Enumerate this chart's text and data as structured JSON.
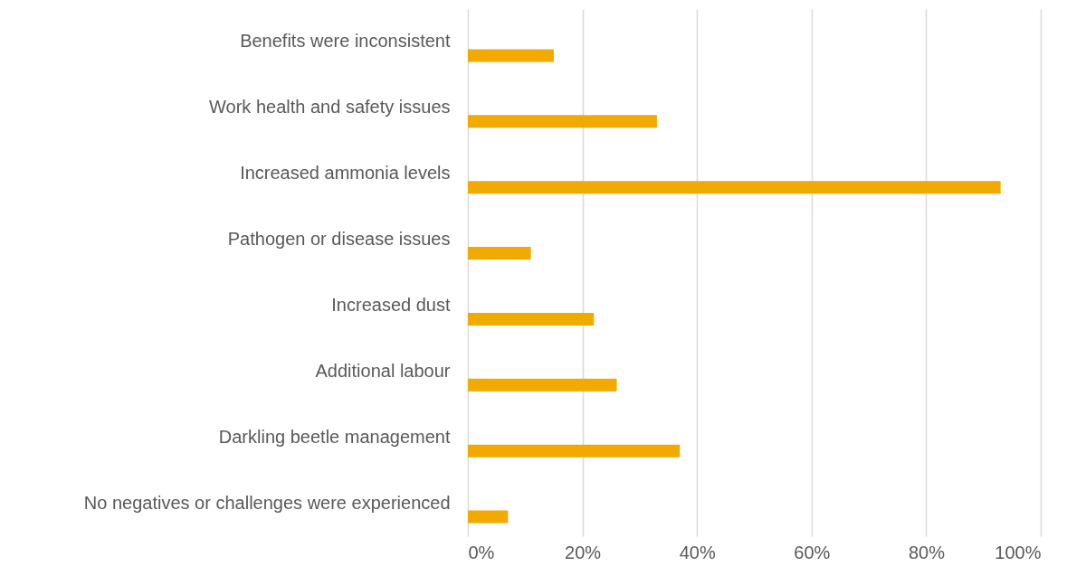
{
  "chart_data": {
    "type": "bar",
    "orientation": "horizontal",
    "categories": [
      "Benefits were inconsistent",
      "Work health and safety issues",
      "Increased ammonia levels",
      "Pathogen or disease issues",
      "Increased dust",
      "Additional labour",
      "Darkling beetle management",
      "No negatives or challenges were experienced"
    ],
    "values": [
      15,
      33,
      93,
      11,
      22,
      26,
      37,
      7
    ],
    "color": "#f2a900",
    "xlim": [
      0,
      100
    ],
    "xticks": [
      {
        "value": 0,
        "label": "0%"
      },
      {
        "value": 20,
        "label": "20%"
      },
      {
        "value": 40,
        "label": "40%"
      },
      {
        "value": 60,
        "label": "60%"
      },
      {
        "value": 80,
        "label": "80%"
      },
      {
        "value": 100,
        "label": "100%"
      }
    ],
    "grid": "x"
  }
}
